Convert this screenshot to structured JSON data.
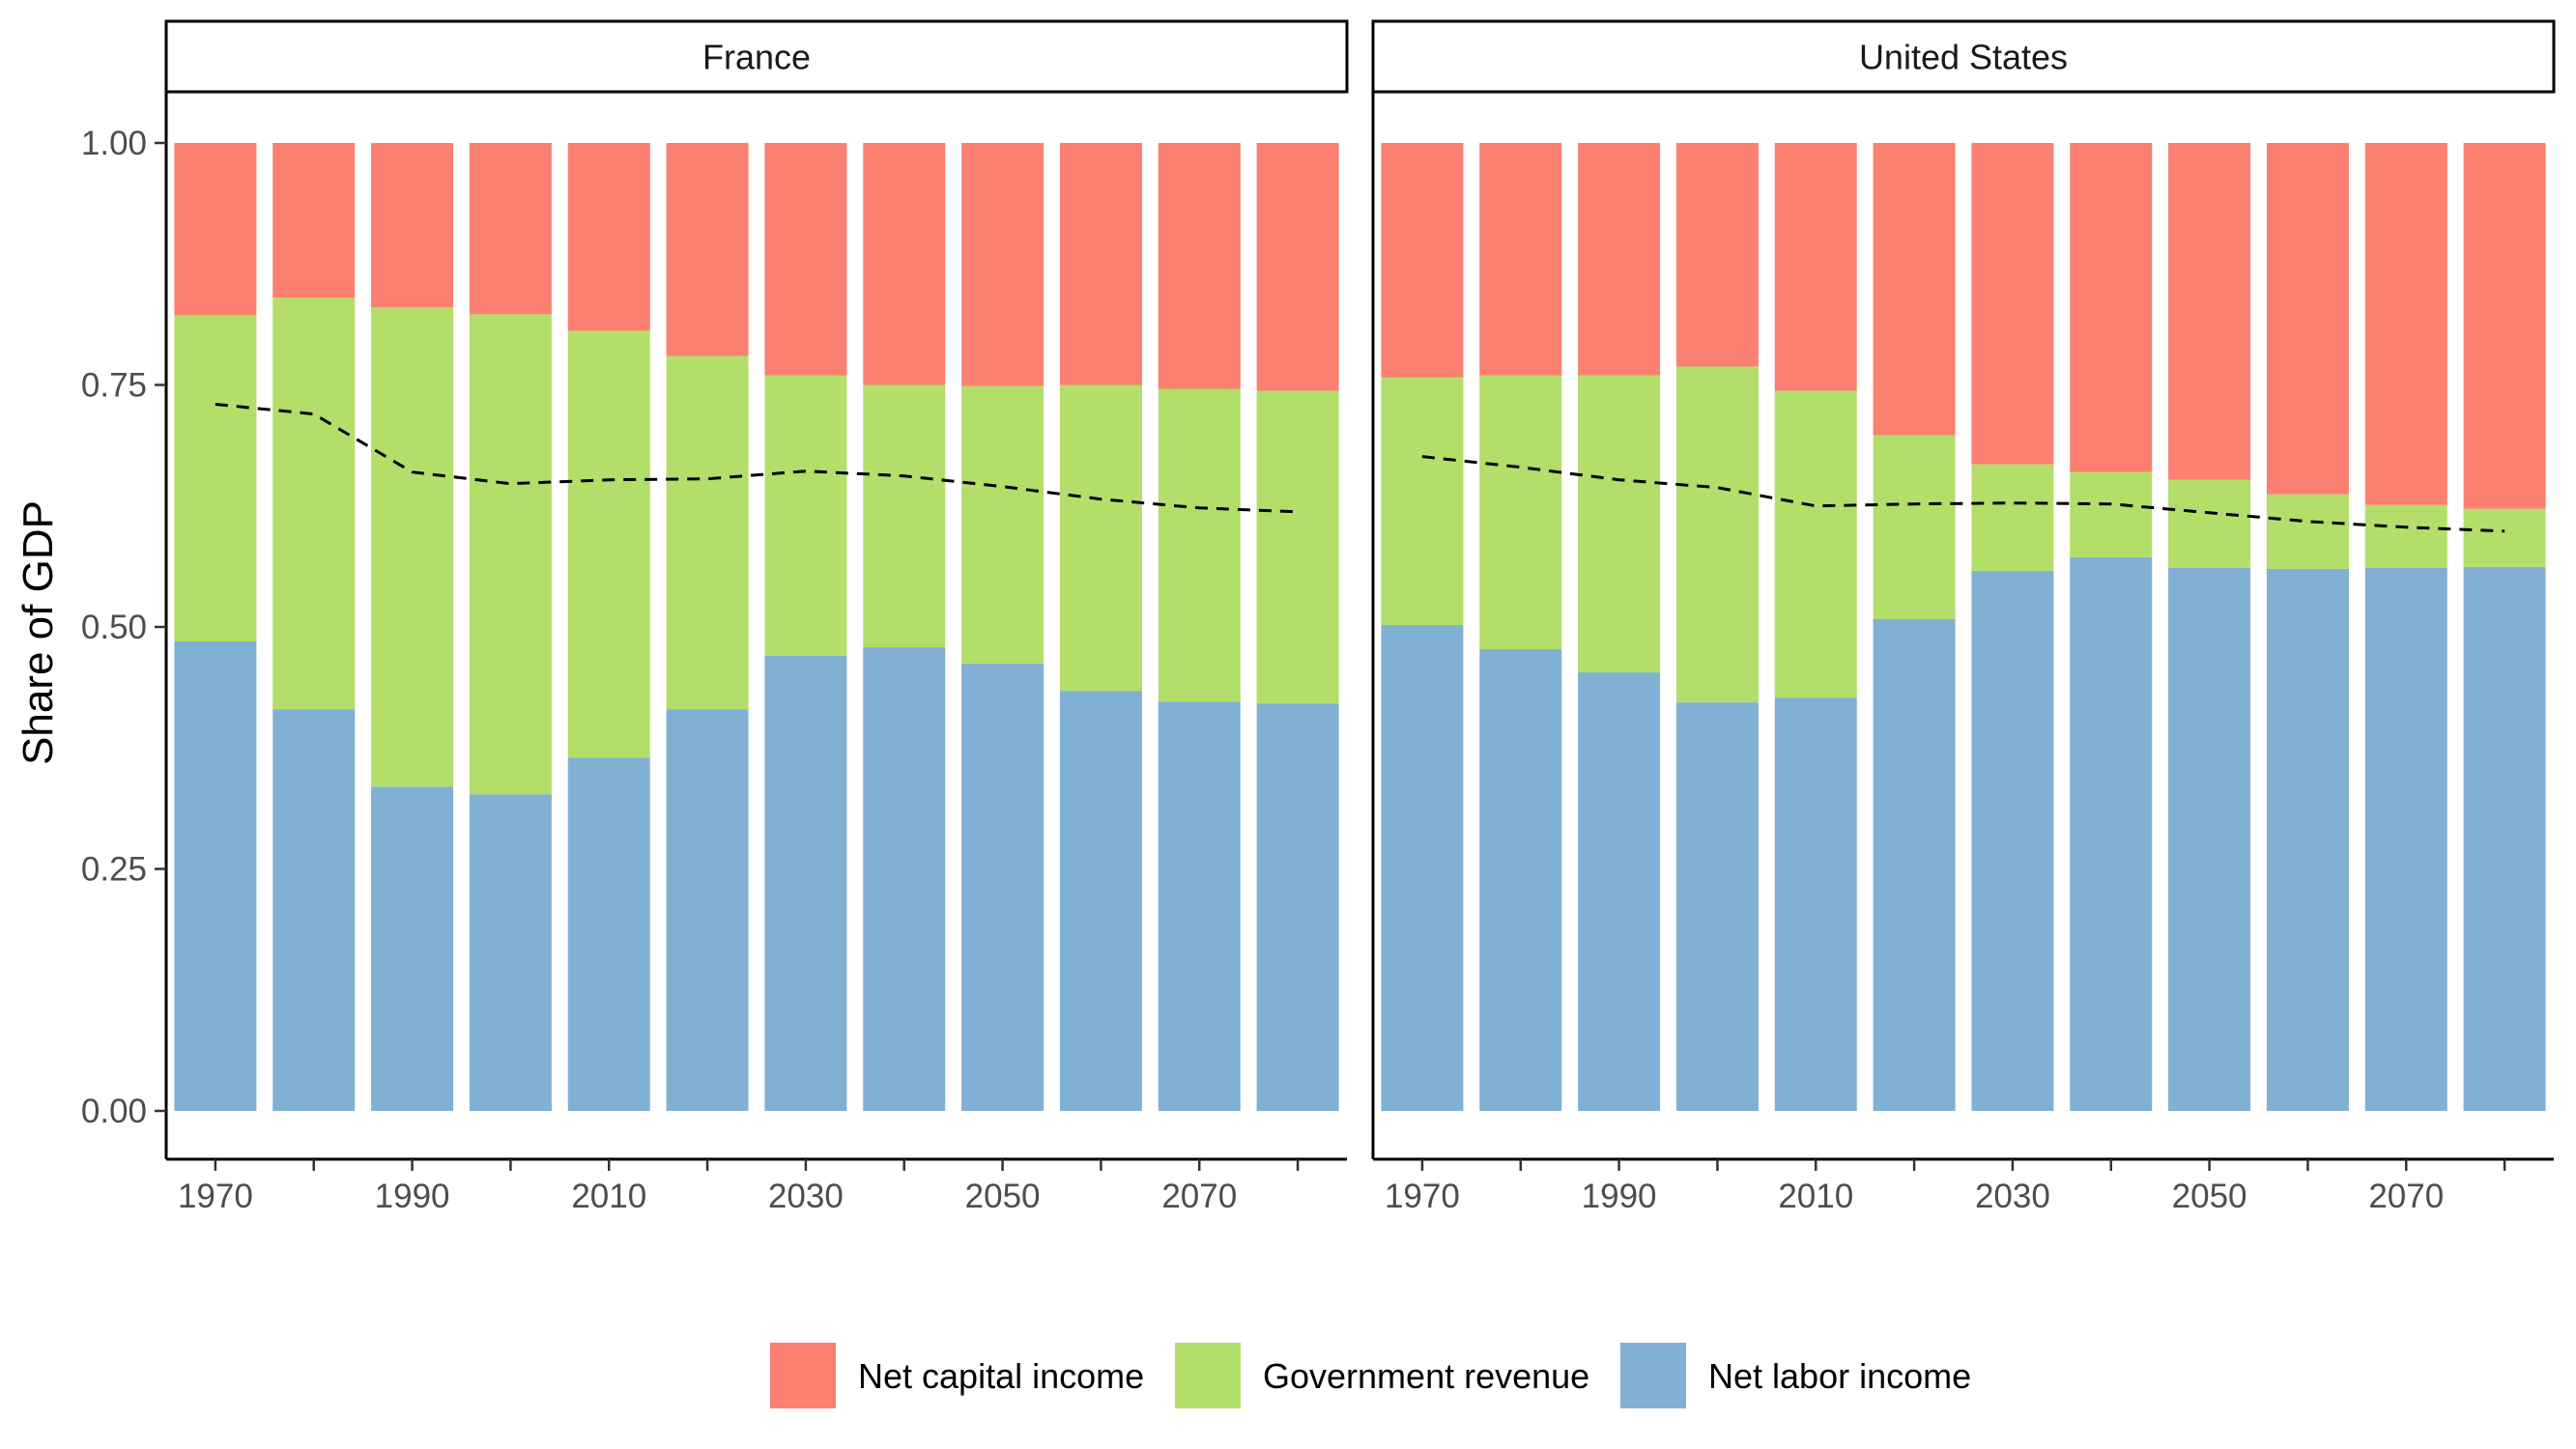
{
  "chart_data": {
    "type": "bar",
    "stacked": true,
    "ylabel": "Share of GDP",
    "xlabel": "",
    "ylim": [
      0,
      1
    ],
    "yticks": [
      "0.00",
      "0.25",
      "0.50",
      "0.75",
      "1.00"
    ],
    "xtick_labels": [
      "1970",
      "1990",
      "2010",
      "2030",
      "2050",
      "2070"
    ],
    "categories": [
      1970,
      1980,
      1990,
      2000,
      2010,
      2020,
      2030,
      2040,
      2050,
      2060,
      2070,
      2080
    ],
    "legend_position": "bottom",
    "colors": {
      "net_labor": "#80B0D3",
      "government": "#B3DE69",
      "net_capital": "#FB8072",
      "line": "#000000"
    },
    "legend": [
      {
        "key": "net_capital",
        "label": "Net capital income"
      },
      {
        "key": "government",
        "label": "Government revenue"
      },
      {
        "key": "net_labor",
        "label": "Net labor income"
      }
    ],
    "panels": [
      {
        "name": "France",
        "net_labor": [
          0.485,
          0.415,
          0.335,
          0.327,
          0.365,
          0.415,
          0.47,
          0.479,
          0.462,
          0.434,
          0.423,
          0.421
        ],
        "government": [
          0.337,
          0.425,
          0.495,
          0.496,
          0.441,
          0.365,
          0.29,
          0.271,
          0.287,
          0.316,
          0.323,
          0.323
        ],
        "net_capital": [
          0.178,
          0.16,
          0.17,
          0.177,
          0.194,
          0.22,
          0.24,
          0.25,
          0.251,
          0.25,
          0.254,
          0.256
        ],
        "line": [
          0.73,
          0.72,
          0.66,
          0.648,
          0.652,
          0.653,
          0.661,
          0.656,
          0.645,
          0.632,
          0.623,
          0.619
        ]
      },
      {
        "name": "United States",
        "net_labor": [
          0.502,
          0.477,
          0.453,
          0.422,
          0.427,
          0.508,
          0.558,
          0.572,
          0.561,
          0.56,
          0.561,
          0.562
        ],
        "government": [
          0.256,
          0.283,
          0.307,
          0.347,
          0.317,
          0.19,
          0.11,
          0.088,
          0.091,
          0.077,
          0.065,
          0.06
        ],
        "net_capital": [
          0.242,
          0.24,
          0.24,
          0.231,
          0.256,
          0.302,
          0.332,
          0.34,
          0.348,
          0.363,
          0.374,
          0.378
        ],
        "line": [
          0.676,
          0.665,
          0.652,
          0.644,
          0.625,
          0.627,
          0.628,
          0.627,
          0.618,
          0.609,
          0.603,
          0.599
        ]
      }
    ]
  }
}
